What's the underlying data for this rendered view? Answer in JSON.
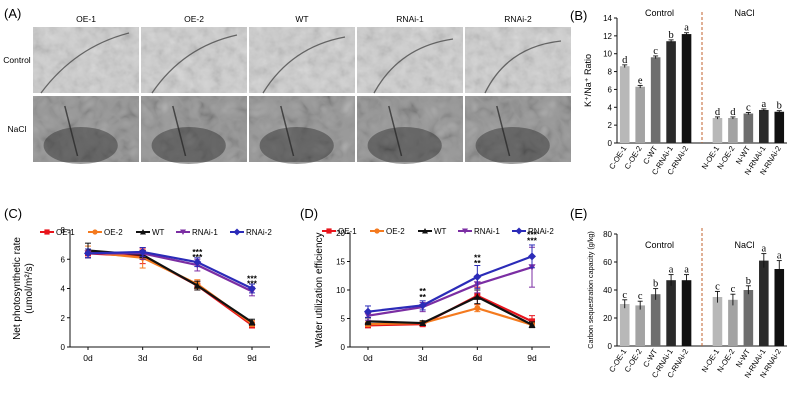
{
  "colors": {
    "oe1": "#e8141c",
    "oe2": "#f47a1f",
    "wt": "#111111",
    "rnai1": "#7b2ea3",
    "rnai2": "#2b2bb8",
    "bar_oe1": "#b8b8b8",
    "bar_oe2": "#a3a3a3",
    "bar_wt": "#6e6e6e",
    "bar_rnai1": "#2a2a2a",
    "bar_rnai2": "#111111",
    "divider": "#c0622c"
  },
  "panelA": {
    "label": "(A)",
    "columns": [
      "OE-1",
      "OE-2",
      "WT",
      "RNAi-1",
      "RNAi-2"
    ],
    "rows": [
      "Control",
      "NaCl"
    ]
  },
  "chart_data": [
    {
      "panel": "(B)",
      "type": "bar",
      "ylabel": "K⁺/Na⁺ Ratio",
      "ylim": [
        0,
        14
      ],
      "yticks": [
        0,
        2,
        4,
        6,
        8,
        10,
        12,
        14
      ],
      "group_labels": [
        "Control",
        "NaCl"
      ],
      "categories": [
        "C-OE-1",
        "C-OE-2",
        "C-WT",
        "C-RNAi-1",
        "C-RNAi-2",
        "N-OE-1",
        "N-OE-2",
        "N-WT",
        "N-RNAi-1",
        "N-RNAi-2"
      ],
      "values": [
        8.6,
        6.3,
        9.6,
        11.4,
        12.2,
        2.8,
        2.8,
        3.3,
        3.7,
        3.5
      ],
      "errors": [
        0.15,
        0.15,
        0.15,
        0.15,
        0.15,
        0.12,
        0.12,
        0.12,
        0.12,
        0.12
      ],
      "letters": [
        "d",
        "e",
        "c",
        "b",
        "a",
        "d",
        "d",
        "c",
        "a",
        "b"
      ]
    },
    {
      "panel": "(C)",
      "type": "line",
      "ylabel": "Net photosynthetic rate",
      "ylabel2": "(umol/m²/s)",
      "ylim": [
        0,
        8
      ],
      "yticks": [
        0,
        2,
        4,
        6,
        8
      ],
      "x": [
        "0d",
        "3d",
        "6d",
        "9d"
      ],
      "series": [
        {
          "name": "OE-1",
          "values": [
            6.4,
            6.2,
            4.2,
            1.5
          ],
          "errors": [
            0.3,
            0.5,
            0.3,
            0.2
          ]
        },
        {
          "name": "OE-2",
          "values": [
            6.5,
            6.1,
            4.3,
            1.6
          ],
          "errors": [
            0.4,
            0.7,
            0.3,
            0.2
          ]
        },
        {
          "name": "WT",
          "values": [
            6.6,
            6.3,
            4.2,
            1.7
          ],
          "errors": [
            0.5,
            0.3,
            0.3,
            0.2
          ]
        },
        {
          "name": "RNAi-1",
          "values": [
            6.4,
            6.4,
            5.6,
            3.8
          ],
          "errors": [
            0.3,
            0.4,
            0.4,
            0.3
          ]
        },
        {
          "name": "RNAi-2",
          "values": [
            6.4,
            6.5,
            5.8,
            4.0
          ],
          "errors": [
            0.3,
            0.3,
            0.3,
            0.3
          ]
        }
      ],
      "annotations": [
        {
          "x": "6d",
          "y": 6.5,
          "text": "***"
        },
        {
          "x": "6d",
          "y": 6.15,
          "text": "***"
        },
        {
          "x": "9d",
          "y": 4.7,
          "text": "***"
        },
        {
          "x": "9d",
          "y": 4.35,
          "text": "***"
        }
      ]
    },
    {
      "panel": "(D)",
      "type": "line",
      "ylabel": "Water utilization efficiency",
      "ylim": [
        0,
        20
      ],
      "yticks": [
        0,
        5,
        10,
        15,
        20
      ],
      "x": [
        "0d",
        "3d",
        "6d",
        "9d"
      ],
      "series": [
        {
          "name": "OE-1",
          "values": [
            3.8,
            4.0,
            9.0,
            4.5
          ],
          "errors": [
            0.4,
            0.3,
            1.5,
            1.0
          ]
        },
        {
          "name": "OE-2",
          "values": [
            4.0,
            4.2,
            6.8,
            3.9
          ],
          "errors": [
            0.4,
            0.3,
            0.6,
            0.4
          ]
        },
        {
          "name": "WT",
          "values": [
            4.5,
            4.2,
            8.8,
            3.9
          ],
          "errors": [
            0.6,
            0.4,
            1.2,
            0.5
          ]
        },
        {
          "name": "RNAi-1",
          "values": [
            5.5,
            7.0,
            11.0,
            14.0
          ],
          "errors": [
            0.8,
            0.8,
            1.5,
            3.5
          ]
        },
        {
          "name": "RNAi-2",
          "values": [
            6.2,
            7.3,
            12.3,
            15.9
          ],
          "errors": [
            1.0,
            0.8,
            2.0,
            2.0
          ]
        }
      ],
      "annotations": [
        {
          "x": "3d",
          "y": 9.8,
          "text": "**"
        },
        {
          "x": "3d",
          "y": 8.8,
          "text": "**"
        },
        {
          "x": "6d",
          "y": 15.7,
          "text": "**"
        },
        {
          "x": "6d",
          "y": 14.7,
          "text": "**"
        },
        {
          "x": "9d",
          "y": 19.7,
          "text": "***"
        },
        {
          "x": "9d",
          "y": 18.7,
          "text": "***"
        }
      ]
    },
    {
      "panel": "(E)",
      "type": "bar",
      "ylabel": "Carbon sequestration capacity (g/kg)",
      "ylim": [
        0,
        80
      ],
      "yticks": [
        0,
        20,
        40,
        60,
        80
      ],
      "group_labels": [
        "Control",
        "NaCl"
      ],
      "categories": [
        "C-OE-1",
        "C-OE-2",
        "C-WT",
        "C-RNAi-1",
        "C-RNAi-2",
        "N-OE-1",
        "N-OE-2",
        "N-WT",
        "N-RNAi-1",
        "N-RNAi-2"
      ],
      "values": [
        30,
        29,
        37,
        47,
        47,
        35,
        33,
        40,
        61,
        55
      ],
      "errors": [
        3,
        3,
        4,
        4,
        4,
        4,
        4,
        3,
        5,
        6
      ],
      "letters": [
        "c",
        "c",
        "b",
        "a",
        "a",
        "c",
        "c",
        "b",
        "a",
        "a"
      ]
    }
  ]
}
